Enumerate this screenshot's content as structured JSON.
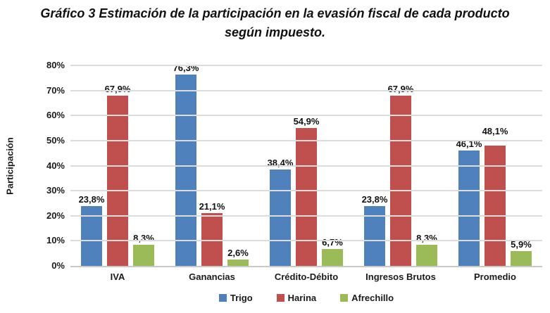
{
  "title": {
    "line1": "Gráfico 3 Estimación de la participación en la evasión fiscal de cada producto",
    "line2": "según impuesto."
  },
  "chart_data": {
    "type": "bar",
    "categories": [
      "IVA",
      "Ganancias",
      "Crédito-Débito",
      "Ingresos Brutos",
      "Promedio"
    ],
    "series": [
      {
        "name": "Trigo",
        "color": "#4F81BD",
        "values": [
          23.8,
          76.3,
          38.4,
          23.8,
          46.1
        ],
        "labels": [
          "23,8%",
          "76,3%",
          "38,4%",
          "23,8%",
          "46,1%"
        ]
      },
      {
        "name": "Harina",
        "color": "#C0504D",
        "values": [
          67.9,
          21.1,
          54.9,
          67.9,
          48.1
        ],
        "labels": [
          "67,9%",
          "21,1%",
          "54,9%",
          "67,9%",
          "48,1%"
        ]
      },
      {
        "name": "Afrechillo",
        "color": "#9BBB59",
        "values": [
          8.3,
          2.6,
          6.7,
          8.3,
          5.9
        ],
        "labels": [
          "8,3%",
          "2,6%",
          "6,7%",
          "8,3%",
          "5,9%"
        ]
      }
    ],
    "ylabel": "Participación",
    "xlabel": "",
    "ylim": [
      0,
      80
    ],
    "ytick_step": 10,
    "ytick_labels": [
      "0%",
      "10%",
      "20%",
      "30%",
      "40%",
      "50%",
      "60%",
      "70%",
      "80%"
    ],
    "grid": true,
    "legend_position": "bottom"
  },
  "colors": {
    "gridline": "#DCDCDC",
    "axis_line": "#C9C9C9",
    "text": "#111111",
    "background": "#FFFFFF"
  }
}
